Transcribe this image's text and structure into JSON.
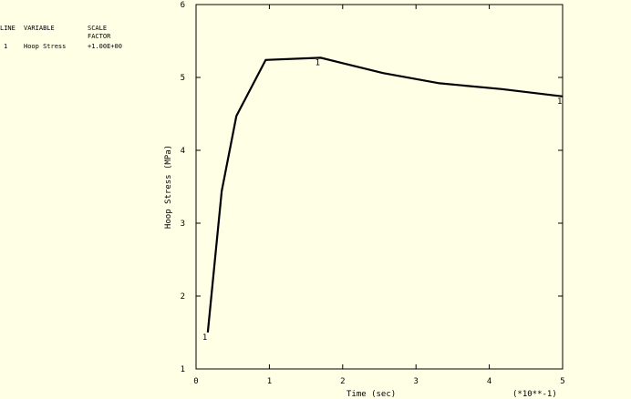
{
  "chart_data": {
    "type": "line",
    "legend_table": {
      "line_header": "LINE",
      "variable_header": "VARIABLE",
      "scale_header": [
        "SCALE",
        "FACTOR"
      ],
      "scale_factor": "+1.00E+00"
    },
    "x_label": "Time (sec)",
    "x_multiplier": "(*10**-1)",
    "y_label": "Hoop Stress (MPa)",
    "x": [
      0.16,
      0.35,
      0.55,
      0.95,
      1.7,
      2.55,
      3.32,
      4.17,
      5.0
    ],
    "series": [
      {
        "name": "Hoop Stress",
        "id": "1",
        "color": "#000000",
        "values": [
          1.5,
          3.44,
          4.47,
          5.24,
          5.27,
          5.06,
          4.92,
          4.84,
          4.74
        ]
      }
    ],
    "xlim": [
      0,
      5
    ],
    "ylim": [
      1,
      6
    ],
    "xticks": [
      0,
      1,
      2,
      3,
      4,
      5
    ],
    "yticks": [
      1,
      2,
      3,
      4,
      5,
      6
    ]
  }
}
